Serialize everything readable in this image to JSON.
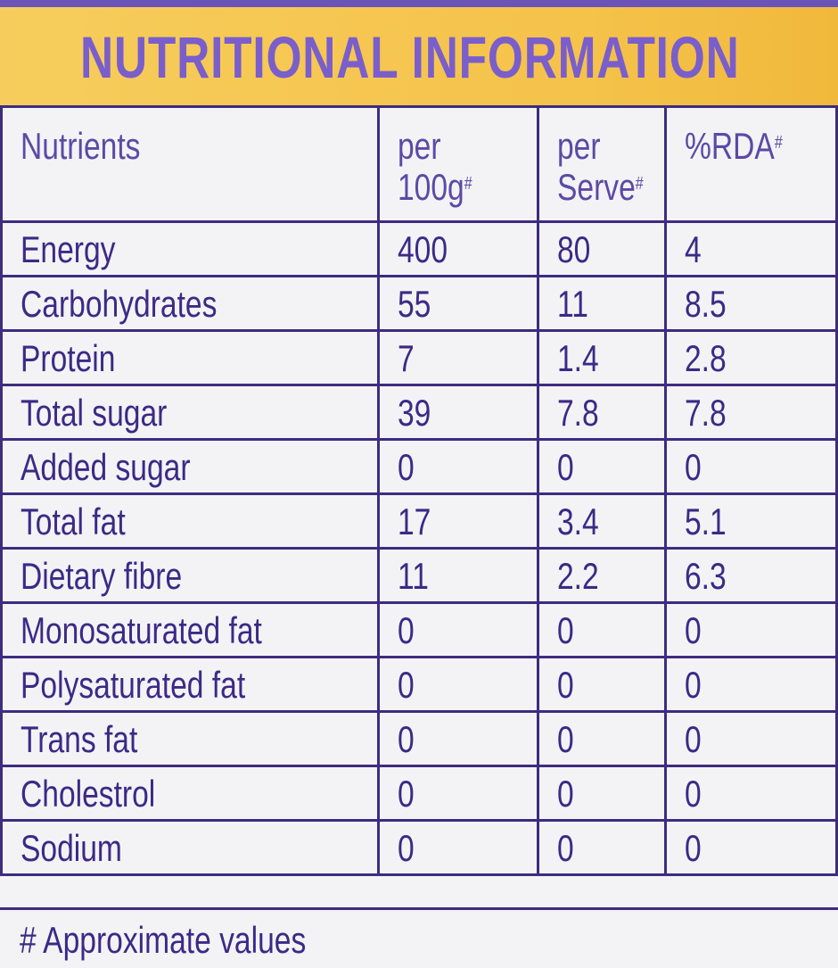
{
  "title": "NUTRITIONAL INFORMATION",
  "table": {
    "header": [
      {
        "lines": [
          "Nutrients"
        ]
      },
      {
        "lines": [
          "per",
          "100g"
        ],
        "mark": "#"
      },
      {
        "lines": [
          "per",
          "Serve"
        ],
        "mark": "#"
      },
      {
        "lines": [
          "%RDA"
        ],
        "mark": "#"
      }
    ],
    "rows": [
      [
        "Energy",
        "400",
        "80",
        "4"
      ],
      [
        "Carbohydrates",
        "55",
        "11",
        "8.5"
      ],
      [
        "Protein",
        "7",
        "1.4",
        "2.8"
      ],
      [
        "Total sugar",
        "39",
        "7.8",
        "7.8"
      ],
      [
        "Added sugar",
        "0",
        "0",
        "0"
      ],
      [
        "Total fat",
        "17",
        "3.4",
        "5.1"
      ],
      [
        "Dietary fibre",
        "11",
        "2.2",
        "6.3"
      ],
      [
        "Monosaturated fat",
        "0",
        "0",
        "0"
      ],
      [
        "Polysaturated fat",
        "0",
        "0",
        "0"
      ],
      [
        "Trans fat",
        "0",
        "0",
        "0"
      ],
      [
        "Cholestrol",
        "0",
        "0",
        "0"
      ],
      [
        "Sodium",
        "0",
        "0",
        "0"
      ]
    ]
  },
  "footnote": "# Approximate values"
}
